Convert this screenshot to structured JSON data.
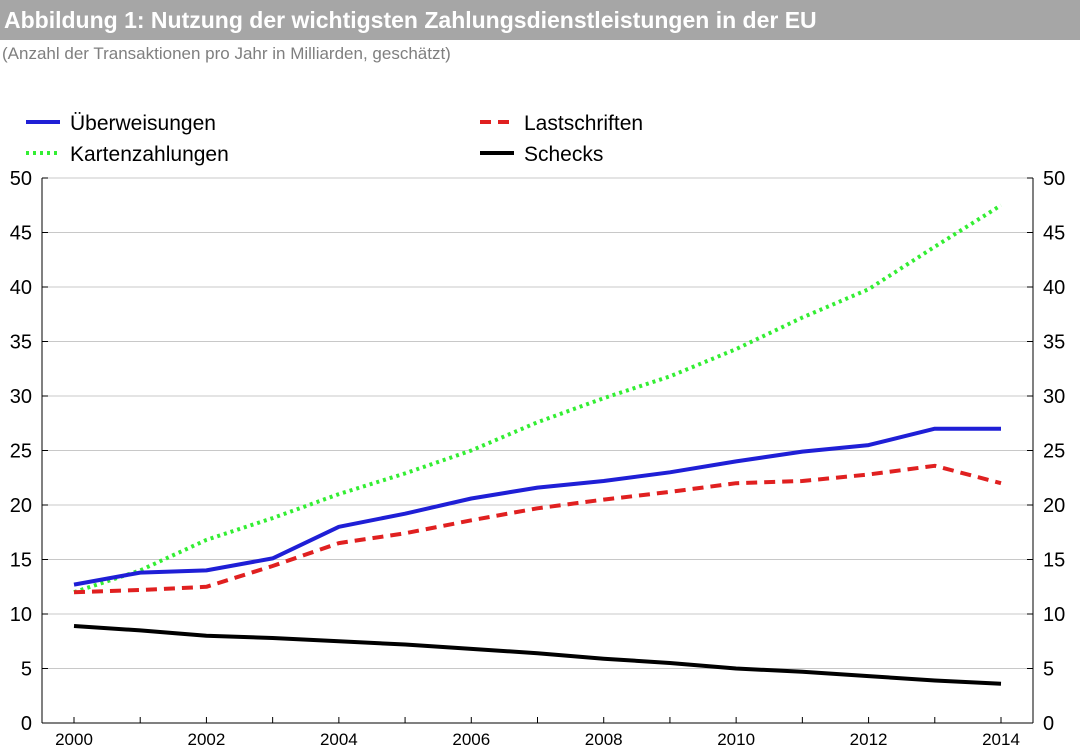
{
  "title": "Abbildung 1:  Nutzung der wichtigsten Zahlungsdienstleistungen in der EU",
  "subtitle": "(Anzahl der Transaktionen pro Jahr in Milliarden, geschätzt)",
  "chart_data": {
    "type": "line",
    "title": "Abbildung 1:  Nutzung der wichtigsten Zahlungsdienstleistungen in der EU",
    "subtitle": "(Anzahl der Transaktionen pro Jahr in Milliarden, geschätzt)",
    "x": [
      2000,
      2001,
      2002,
      2003,
      2004,
      2005,
      2006,
      2007,
      2008,
      2009,
      2010,
      2011,
      2012,
      2013,
      2014
    ],
    "x_tick_labels": [
      "2000",
      "2002",
      "2004",
      "2006",
      "2008",
      "2010",
      "2012",
      "2014"
    ],
    "y_tick_labels": [
      "0",
      "5",
      "10",
      "15",
      "20",
      "25",
      "30",
      "35",
      "40",
      "45",
      "50"
    ],
    "xlim": [
      2000,
      2014
    ],
    "ylim": [
      0,
      50
    ],
    "grid": true,
    "legend_position": "top",
    "series": [
      {
        "name": "Überweisungen",
        "color": "#1f1fd6",
        "style": "solid",
        "values": [
          12.7,
          13.8,
          14.0,
          15.1,
          18.0,
          19.2,
          20.6,
          21.6,
          22.2,
          23.0,
          24.0,
          24.9,
          25.5,
          27.0,
          27.0
        ]
      },
      {
        "name": "Lastschriften",
        "color": "#e02020",
        "style": "dashed",
        "values": [
          12.0,
          12.2,
          12.5,
          14.4,
          16.5,
          17.4,
          18.6,
          19.7,
          20.5,
          21.2,
          22.0,
          22.2,
          22.8,
          23.6,
          22.0
        ]
      },
      {
        "name": "Kartenzahlungen",
        "color": "#33ee33",
        "style": "dotted",
        "values": [
          12.0,
          14.0,
          16.8,
          18.8,
          21.0,
          22.9,
          25.0,
          27.6,
          29.8,
          31.8,
          34.3,
          37.2,
          39.8,
          43.7,
          47.5
        ]
      },
      {
        "name": "Schecks",
        "color": "#000000",
        "style": "solid",
        "values": [
          8.9,
          8.5,
          8.0,
          7.8,
          7.5,
          7.2,
          6.8,
          6.4,
          5.9,
          5.5,
          5.0,
          4.7,
          4.3,
          3.9,
          3.6
        ]
      }
    ]
  }
}
